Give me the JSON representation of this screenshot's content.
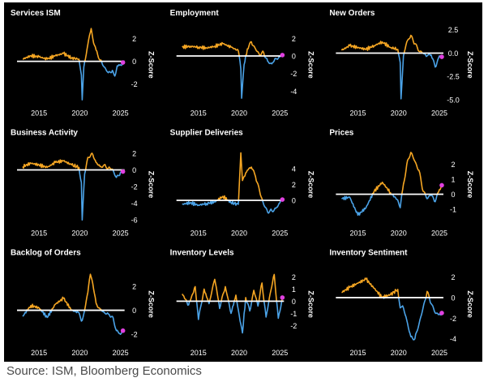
{
  "source": "Source: ISM, Bloomberg Economics",
  "colors": {
    "positive": "#F5A623",
    "negative": "#4BA3E8",
    "latest_marker": "#E040E0",
    "zero_line": "#FFFFFF",
    "background": "#000000",
    "text": "#FFFFFF"
  },
  "chart_data": [
    {
      "type": "area",
      "title": "Services ISM",
      "ylabel": "Z-Score",
      "xlim": [
        2012.5,
        2025.5
      ],
      "ylim": [
        -3.8,
        3.2
      ],
      "yticks": [
        {
          "v": 2,
          "label": "2"
        },
        {
          "v": 0,
          "label": "0"
        },
        {
          "v": -2,
          "label": "-2"
        }
      ],
      "xticks": [
        {
          "v": 2015,
          "label": "2015"
        },
        {
          "v": 2020,
          "label": "2020"
        },
        {
          "v": 2025,
          "label": "2025"
        }
      ],
      "x": [
        2013,
        2014,
        2015,
        2016,
        2017,
        2018,
        2019,
        2019.9,
        2020.2,
        2020.3,
        2020.5,
        2021,
        2021.2,
        2021.4,
        2021.7,
        2022,
        2022.5,
        2023,
        2023.5,
        2024,
        2024.3,
        2024.6,
        2025,
        2025.3
      ],
      "y": [
        0.2,
        0.5,
        0.4,
        0.2,
        0.5,
        0.7,
        0.3,
        0.2,
        -1.2,
        -3.4,
        -0.5,
        1.5,
        2.3,
        2.9,
        1.6,
        1.0,
        0.1,
        -0.5,
        -1.0,
        -0.8,
        -1.3,
        -0.4,
        -0.3,
        -0.1
      ]
    },
    {
      "type": "area",
      "title": "Employment",
      "ylabel": "Z-Score",
      "xlim": [
        2012.5,
        2025.5
      ],
      "ylim": [
        -5.5,
        3.5
      ],
      "yticks": [
        {
          "v": 2,
          "label": "2"
        },
        {
          "v": 0,
          "label": "0"
        },
        {
          "v": -2,
          "label": "-2"
        },
        {
          "v": -4,
          "label": "-4"
        }
      ],
      "xticks": [
        {
          "v": 2015,
          "label": "2015"
        },
        {
          "v": 2020,
          "label": "2020"
        },
        {
          "v": 2025,
          "label": "2025"
        }
      ],
      "x": [
        2013,
        2014,
        2015,
        2016,
        2017,
        2018,
        2019,
        2019.9,
        2020.2,
        2020.3,
        2020.6,
        2021,
        2021.5,
        2022,
        2022.5,
        2023,
        2023.5,
        2024,
        2024.5,
        2025,
        2025.3
      ],
      "y": [
        1.0,
        1.1,
        1.0,
        0.9,
        1.1,
        1.4,
        1.0,
        0.6,
        -1.5,
        -4.8,
        -1.0,
        0.8,
        1.6,
        0.8,
        0.1,
        0.4,
        -0.6,
        -0.9,
        -0.3,
        -0.1,
        0.1
      ]
    },
    {
      "type": "area",
      "title": "New Orders",
      "ylabel": "Z-Score",
      "xlim": [
        2012.5,
        2025.5
      ],
      "ylim": [
        -5.5,
        3.0
      ],
      "yticks": [
        {
          "v": 2.5,
          "label": "2.5"
        },
        {
          "v": 0,
          "label": "0.0"
        },
        {
          "v": -2.5,
          "label": "-2.5"
        },
        {
          "v": -5,
          "label": "-5.0"
        }
      ],
      "xticks": [
        {
          "v": 2015,
          "label": "2015"
        },
        {
          "v": 2020,
          "label": "2020"
        },
        {
          "v": 2025,
          "label": "2025"
        }
      ],
      "x": [
        2013,
        2014,
        2015,
        2016,
        2017,
        2018,
        2019,
        2019.9,
        2020.2,
        2020.3,
        2020.6,
        2021,
        2021.5,
        2022,
        2022.5,
        2023,
        2023.5,
        2024,
        2024.5,
        2025,
        2025.3
      ],
      "y": [
        0.3,
        0.8,
        0.6,
        0.4,
        0.8,
        1.2,
        0.6,
        0.4,
        -1.0,
        -4.9,
        -0.3,
        1.2,
        1.9,
        1.0,
        0.2,
        0.0,
        -0.3,
        -0.2,
        -1.5,
        -0.3,
        -0.4
      ]
    },
    {
      "type": "area",
      "title": "Business Activity",
      "ylabel": "Z-Score",
      "xlim": [
        2012.5,
        2025.5
      ],
      "ylim": [
        -6.5,
        3.0
      ],
      "yticks": [
        {
          "v": 2,
          "label": "2"
        },
        {
          "v": 0,
          "label": "0"
        },
        {
          "v": -2,
          "label": "-2"
        },
        {
          "v": -4,
          "label": "-4"
        },
        {
          "v": -6,
          "label": "-6"
        }
      ],
      "xticks": [
        {
          "v": 2015,
          "label": "2015"
        },
        {
          "v": 2020,
          "label": "2020"
        },
        {
          "v": 2025,
          "label": "2025"
        }
      ],
      "x": [
        2013,
        2014,
        2015,
        2016,
        2017,
        2018,
        2019,
        2019.9,
        2020.2,
        2020.3,
        2020.6,
        2021,
        2021.5,
        2022,
        2022.5,
        2023,
        2023.5,
        2024,
        2024.5,
        2025,
        2025.3
      ],
      "y": [
        0.4,
        0.8,
        0.6,
        0.3,
        0.9,
        1.1,
        0.6,
        0.3,
        -1.5,
        -6.0,
        -0.5,
        1.5,
        2.0,
        0.9,
        0.4,
        0.6,
        0.2,
        0.1,
        -0.9,
        -0.3,
        -0.2
      ]
    },
    {
      "type": "area",
      "title": "Supplier Deliveries",
      "ylabel": "Z-Score",
      "xlim": [
        2012.5,
        2025.5
      ],
      "ylim": [
        -3.0,
        7.0
      ],
      "yticks": [
        {
          "v": 4,
          "label": "4"
        },
        {
          "v": 2,
          "label": "2"
        },
        {
          "v": 0,
          "label": "0"
        }
      ],
      "xticks": [
        {
          "v": 2015,
          "label": "2015"
        },
        {
          "v": 2020,
          "label": "2020"
        },
        {
          "v": 2025,
          "label": "2025"
        }
      ],
      "x": [
        2013,
        2014,
        2015,
        2016,
        2017,
        2018,
        2019,
        2019.9,
        2020.2,
        2020.4,
        2020.6,
        2021,
        2021.5,
        2022,
        2022.5,
        2023,
        2023.5,
        2024,
        2024.5,
        2025,
        2025.3
      ],
      "y": [
        -0.5,
        -0.3,
        -0.6,
        -0.4,
        -0.2,
        0.5,
        -0.3,
        -0.5,
        6.0,
        2.5,
        3.0,
        3.8,
        4.2,
        3.0,
        1.2,
        -0.5,
        -1.5,
        -1.3,
        -1.0,
        -0.3,
        0.1
      ]
    },
    {
      "type": "area",
      "title": "Prices",
      "ylabel": "Z-Score",
      "xlim": [
        2012.5,
        2025.5
      ],
      "ylim": [
        -2.0,
        3.3
      ],
      "yticks": [
        {
          "v": 2,
          "label": "2"
        },
        {
          "v": 1,
          "label": "1"
        },
        {
          "v": 0,
          "label": "0"
        },
        {
          "v": -1,
          "label": "-1"
        }
      ],
      "xticks": [
        {
          "v": 2015,
          "label": "2015"
        },
        {
          "v": 2020,
          "label": "2020"
        },
        {
          "v": 2025,
          "label": "2025"
        }
      ],
      "x": [
        2013,
        2014,
        2015,
        2016,
        2017,
        2018,
        2019,
        2019.9,
        2020.2,
        2020.5,
        2021,
        2021.5,
        2022,
        2022.5,
        2023,
        2023.5,
        2024,
        2024.5,
        2025,
        2025.3
      ],
      "y": [
        -0.3,
        -0.2,
        -1.4,
        -0.9,
        0.2,
        0.8,
        0.1,
        -0.4,
        -0.9,
        0.3,
        2.0,
        2.8,
        2.2,
        1.6,
        0.2,
        -0.3,
        0.0,
        -0.5,
        0.3,
        0.6
      ]
    },
    {
      "type": "area",
      "title": "Backlog of Orders",
      "ylabel": "Z-Score",
      "xlim": [
        2012.5,
        2025.5
      ],
      "ylim": [
        -2.8,
        3.8
      ],
      "yticks": [
        {
          "v": 2,
          "label": "2"
        },
        {
          "v": 0,
          "label": "0"
        },
        {
          "v": -2,
          "label": "-2"
        }
      ],
      "xticks": [
        {
          "v": 2015,
          "label": "2015"
        },
        {
          "v": 2020,
          "label": "2020"
        },
        {
          "v": 2025,
          "label": "2025"
        }
      ],
      "x": [
        2013,
        2014,
        2015,
        2016,
        2017,
        2018,
        2019,
        2019.9,
        2020.2,
        2020.5,
        2021,
        2021.3,
        2021.6,
        2022,
        2022.5,
        2023,
        2023.5,
        2024,
        2024.5,
        2025,
        2025.3
      ],
      "y": [
        -0.5,
        0.4,
        0.2,
        -0.6,
        0.5,
        1.0,
        0.0,
        -0.2,
        -0.9,
        -0.3,
        1.5,
        3.0,
        2.2,
        0.6,
        0.1,
        -0.2,
        -0.3,
        -0.5,
        -1.7,
        -2.0,
        -1.7
      ]
    },
    {
      "type": "area",
      "title": "Inventory Levels",
      "ylabel": "Z-Score",
      "xlim": [
        2012.5,
        2025.5
      ],
      "ylim": [
        -3.5,
        3.0
      ],
      "yticks": [
        {
          "v": 2,
          "label": "2"
        },
        {
          "v": 1,
          "label": "1"
        },
        {
          "v": 0,
          "label": "0"
        },
        {
          "v": -1,
          "label": "-1"
        },
        {
          "v": -2,
          "label": "-2"
        }
      ],
      "xticks": [
        {
          "v": 2015,
          "label": "2015"
        },
        {
          "v": 2020,
          "label": "2020"
        },
        {
          "v": 2025,
          "label": "2025"
        }
      ],
      "x": [
        2013,
        2013.8,
        2014.6,
        2015,
        2015.7,
        2016.3,
        2017,
        2017.6,
        2018.3,
        2019,
        2019.6,
        2020.1,
        2020.4,
        2020.8,
        2021.3,
        2021.8,
        2022.3,
        2022.8,
        2023.3,
        2023.8,
        2024.3,
        2024.8,
        2025.3
      ],
      "y": [
        0.6,
        -0.3,
        1.2,
        -1.5,
        1.0,
        -0.2,
        1.8,
        -0.6,
        1.2,
        -1.0,
        0.5,
        -1.6,
        -2.6,
        0.3,
        -0.8,
        0.9,
        -0.4,
        1.5,
        -1.3,
        0.6,
        2.2,
        -1.4,
        0.3
      ]
    },
    {
      "type": "area",
      "title": "Inventory Sentiment",
      "ylabel": "Z-Score",
      "xlim": [
        2012.5,
        2025.5
      ],
      "ylim": [
        -4.5,
        3.2
      ],
      "yticks": [
        {
          "v": 2,
          "label": "2"
        },
        {
          "v": 0,
          "label": "0"
        },
        {
          "v": -2,
          "label": "-2"
        },
        {
          "v": -4,
          "label": "-4"
        }
      ],
      "xticks": [
        {
          "v": 2015,
          "label": "2015"
        },
        {
          "v": 2020,
          "label": "2020"
        },
        {
          "v": 2025,
          "label": "2025"
        }
      ],
      "x": [
        2013,
        2014,
        2015,
        2016,
        2017,
        2018,
        2019,
        2019.9,
        2020.2,
        2020.5,
        2021,
        2021.5,
        2022,
        2022.5,
        2023,
        2023.5,
        2024,
        2024.5,
        2025,
        2025.3
      ],
      "y": [
        0.5,
        1.0,
        1.4,
        1.8,
        0.9,
        0.0,
        0.3,
        0.8,
        -1.0,
        -0.8,
        -2.2,
        -3.8,
        -4.0,
        -2.6,
        -1.0,
        0.6,
        -0.6,
        -1.5,
        -1.6,
        -1.5
      ]
    }
  ]
}
